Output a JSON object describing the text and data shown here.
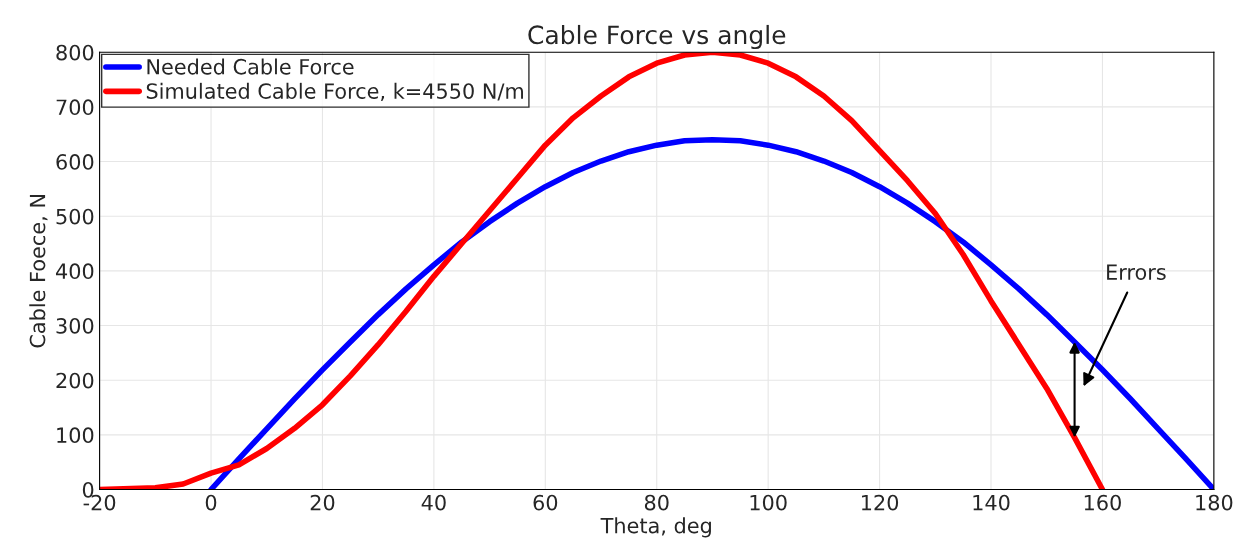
{
  "chart_data": {
    "type": "line",
    "title": "Cable Force vs angle",
    "xlabel": "Theta, deg",
    "ylabel": "Cable Foece, N",
    "series": [
      {
        "name": "Needed Cable Force",
        "color": "#0000ff",
        "x": [
          0,
          5,
          10,
          15,
          20,
          25,
          30,
          35,
          40,
          45,
          50,
          55,
          60,
          65,
          70,
          75,
          80,
          85,
          90,
          95,
          100,
          105,
          110,
          115,
          120,
          125,
          130,
          135,
          140,
          145,
          150,
          155,
          160,
          165,
          170,
          175,
          180
        ],
        "values": [
          0,
          56,
          111,
          166,
          219,
          270,
          320,
          367,
          411,
          453,
          490,
          524,
          554,
          580,
          601,
          618,
          630,
          638,
          640,
          638,
          630,
          618,
          601,
          580,
          554,
          524,
          490,
          453,
          411,
          367,
          320,
          270,
          219,
          166,
          111,
          56,
          0
        ]
      },
      {
        "name": "Simulated Cable Force, k=4550 N/m",
        "color": "#ff0000",
        "x": [
          -20,
          -10,
          -5,
          0,
          5,
          10,
          15,
          20,
          25,
          30,
          35,
          40,
          45,
          50,
          55,
          60,
          65,
          70,
          75,
          80,
          85,
          90,
          95,
          100,
          105,
          110,
          115,
          120,
          125,
          130,
          135,
          140,
          145,
          150,
          155,
          160
        ],
        "values": [
          0,
          3,
          10,
          30,
          45,
          75,
          112,
          155,
          208,
          265,
          326,
          390,
          450,
          510,
          570,
          630,
          680,
          720,
          755,
          780,
          795,
          800,
          795,
          780,
          755,
          720,
          675,
          620,
          565,
          505,
          430,
          345,
          265,
          185,
          95,
          0
        ]
      }
    ],
    "annotations": [
      "Errors"
    ],
    "xlim": [
      -20,
      180
    ],
    "xticks": [
      -20,
      0,
      20,
      40,
      60,
      80,
      100,
      120,
      140,
      160,
      180
    ],
    "ylim": [
      0,
      800
    ],
    "yticks": [
      0,
      100,
      200,
      300,
      400,
      500,
      600,
      700,
      800
    ],
    "grid": true,
    "legend": "top left",
    "line_style": "solid",
    "marker": "none"
  }
}
